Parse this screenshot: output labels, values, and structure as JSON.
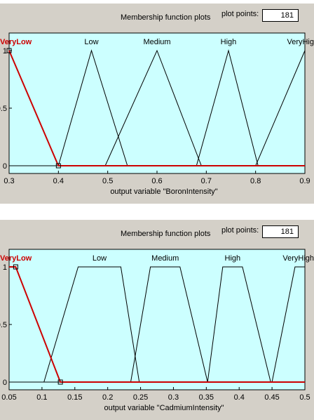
{
  "colors": {
    "plot_bg": "#ccffff",
    "curve": "#000000",
    "selected_curve": "#cc0000",
    "selected_label": "#cc0000"
  },
  "panels": [
    {
      "header_title": "Membership function plots",
      "plot_points_label": "plot points:",
      "plot_points_value": "181"
    },
    {
      "header_title": "Membership function plots",
      "plot_points_label": "plot points:",
      "plot_points_value": "181"
    }
  ],
  "chart_data": [
    {
      "type": "line",
      "xlabel": "output variable \"BoronIntensity\"",
      "ylabel": "",
      "xlim": [
        0.3,
        0.9
      ],
      "ylim": [
        0,
        1
      ],
      "xticks": [
        "0.3",
        "0.4",
        "0.5",
        "0.6",
        "0.7",
        "0.8",
        "0.9"
      ],
      "yticks": [
        "0",
        "0.5",
        "1"
      ],
      "selected": "VeryLow",
      "series": [
        {
          "name": "VeryLow",
          "points": [
            [
              0.3,
              1
            ],
            [
              0.4,
              0
            ],
            [
              0.9,
              0
            ]
          ]
        },
        {
          "name": "Low",
          "points": [
            [
              0.3,
              0
            ],
            [
              0.4,
              0
            ],
            [
              0.467,
              1
            ],
            [
              0.54,
              0
            ],
            [
              0.9,
              0
            ]
          ]
        },
        {
          "name": "Medium",
          "points": [
            [
              0.3,
              0
            ],
            [
              0.495,
              0
            ],
            [
              0.6,
              1
            ],
            [
              0.69,
              0
            ],
            [
              0.9,
              0
            ]
          ]
        },
        {
          "name": "High",
          "points": [
            [
              0.3,
              0
            ],
            [
              0.68,
              0
            ],
            [
              0.745,
              1
            ],
            [
              0.805,
              0
            ],
            [
              0.9,
              0
            ]
          ]
        },
        {
          "name": "VeryHigh",
          "points": [
            [
              0.3,
              0
            ],
            [
              0.8,
              0
            ],
            [
              0.9,
              1
            ]
          ]
        }
      ],
      "label_names": [
        "VeryLow",
        "Low",
        "Medium",
        "High",
        "VeryHig"
      ]
    },
    {
      "type": "line",
      "xlabel": "output variable \"CadmiumIntensity\"",
      "ylabel": "",
      "xlim": [
        0.05,
        0.5
      ],
      "ylim": [
        0,
        1
      ],
      "xticks": [
        "0.05",
        "0.1",
        "0.15",
        "0.2",
        "0.25",
        "0.3",
        "0.35",
        "0.4",
        "0.45",
        "0.5"
      ],
      "yticks": [
        "0",
        "0.5",
        "1"
      ],
      "selected": "VeryLow",
      "series": [
        {
          "name": "VeryLow",
          "points": [
            [
              0.05,
              1
            ],
            [
              0.06,
              1
            ],
            [
              0.128,
              0
            ],
            [
              0.5,
              0
            ]
          ]
        },
        {
          "name": "Low",
          "points": [
            [
              0.05,
              0
            ],
            [
              0.103,
              0
            ],
            [
              0.155,
              1
            ],
            [
              0.22,
              1
            ],
            [
              0.248,
              0
            ],
            [
              0.5,
              0
            ]
          ]
        },
        {
          "name": "Medium",
          "points": [
            [
              0.05,
              0
            ],
            [
              0.235,
              0
            ],
            [
              0.265,
              1
            ],
            [
              0.31,
              1
            ],
            [
              0.352,
              0
            ],
            [
              0.5,
              0
            ]
          ]
        },
        {
          "name": "High",
          "points": [
            [
              0.05,
              0
            ],
            [
              0.352,
              0
            ],
            [
              0.375,
              1
            ],
            [
              0.405,
              1
            ],
            [
              0.448,
              0
            ],
            [
              0.5,
              0
            ]
          ]
        },
        {
          "name": "VeryHigh",
          "points": [
            [
              0.05,
              0
            ],
            [
              0.45,
              0
            ],
            [
              0.485,
              1
            ],
            [
              0.5,
              1
            ]
          ]
        }
      ],
      "label_names": [
        "VeryLow",
        "Low",
        "Medium",
        "High",
        "VeryHigh"
      ]
    }
  ]
}
